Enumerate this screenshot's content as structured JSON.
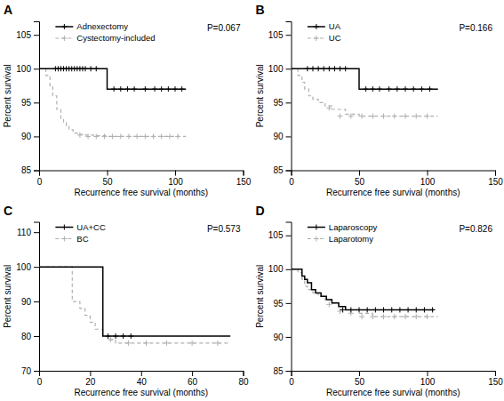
{
  "chart_data": [
    {
      "type": "step",
      "title": "A",
      "annotation": "P=0.067",
      "xlabel": "Recurrence free survival (months)",
      "ylabel": "Percent survival",
      "xlim": [
        0,
        150
      ],
      "ylim": [
        85,
        107
      ],
      "xticks": [
        0,
        50,
        100,
        150
      ],
      "yticks": [
        85,
        90,
        95,
        100,
        105
      ],
      "legend": "top-left",
      "series": [
        {
          "name": "Adnexectomy",
          "color": "#000000",
          "line_style": "solid",
          "marker": "+",
          "x": [
            0,
            10,
            15,
            20,
            25,
            30,
            35,
            40,
            45,
            50,
            55,
            60,
            65,
            70,
            75,
            80,
            85,
            90,
            95,
            100,
            105,
            108
          ],
          "values": [
            100,
            100,
            100,
            100,
            100,
            100,
            100,
            100,
            100,
            97,
            97,
            97,
            97,
            97,
            97,
            97,
            97,
            97,
            97,
            97,
            97,
            97
          ],
          "censor_x": [
            12,
            14,
            16,
            18,
            20,
            22,
            24,
            26,
            28,
            30,
            32,
            34,
            38,
            42,
            55,
            60,
            65,
            70,
            78,
            85,
            90,
            95,
            100,
            105
          ],
          "censor_values": [
            100,
            100,
            100,
            100,
            100,
            100,
            100,
            100,
            100,
            100,
            100,
            100,
            100,
            100,
            97,
            97,
            97,
            97,
            97,
            97,
            97,
            97,
            97,
            97
          ]
        },
        {
          "name": "Cystectomy-included",
          "color": "#b0b0b0",
          "line_style": "dashed",
          "marker": "+",
          "x": [
            0,
            5,
            8,
            10,
            13,
            16,
            18,
            20,
            22,
            25,
            28,
            32,
            40,
            50,
            60,
            70,
            80,
            90,
            100,
            108
          ],
          "values": [
            100,
            99,
            97.5,
            96,
            94,
            92.5,
            92,
            91.5,
            91,
            90.5,
            90.3,
            90.2,
            90.1,
            90,
            90,
            90,
            90,
            90,
            90,
            90
          ],
          "censor_x": [
            30,
            36,
            42,
            48,
            54,
            60,
            66,
            72,
            78,
            84,
            90,
            96,
            102
          ],
          "censor_values": [
            90.2,
            90,
            90,
            90,
            90,
            90,
            90,
            90,
            90,
            90,
            90,
            90,
            90
          ]
        }
      ]
    },
    {
      "type": "step",
      "title": "B",
      "annotation": "P=0.166",
      "xlabel": "Recurrence free survival (months)",
      "ylabel": "Percent survival",
      "xlim": [
        0,
        150
      ],
      "ylim": [
        85,
        107
      ],
      "xticks": [
        0,
        50,
        100,
        150
      ],
      "yticks": [
        85,
        90,
        95,
        100,
        105
      ],
      "legend": "top-left",
      "series": [
        {
          "name": "UA",
          "color": "#000000",
          "line_style": "solid",
          "marker": "+",
          "x": [
            0,
            10,
            15,
            20,
            25,
            30,
            35,
            40,
            45,
            50,
            55,
            60,
            65,
            70,
            75,
            80,
            85,
            90,
            95,
            100,
            105,
            108
          ],
          "values": [
            100,
            100,
            100,
            100,
            100,
            100,
            100,
            100,
            100,
            97,
            97,
            97,
            97,
            97,
            97,
            97,
            97,
            97,
            97,
            97,
            97,
            97
          ],
          "censor_x": [
            12,
            16,
            20,
            24,
            28,
            32,
            36,
            40,
            55,
            60,
            65,
            72,
            78,
            84,
            90,
            96,
            102
          ],
          "censor_values": [
            100,
            100,
            100,
            100,
            100,
            100,
            100,
            100,
            97,
            97,
            97,
            97,
            97,
            97,
            97,
            97,
            97
          ]
        },
        {
          "name": "UC",
          "color": "#b0b0b0",
          "line_style": "dashed",
          "marker": "+",
          "x": [
            0,
            5,
            8,
            10,
            13,
            16,
            20,
            25,
            30,
            40,
            50,
            60,
            80,
            100,
            108
          ],
          "values": [
            100,
            99,
            98,
            97,
            96,
            95.5,
            95,
            94.5,
            94,
            93.3,
            93,
            93,
            93,
            93,
            93
          ],
          "censor_x": [
            28,
            36,
            44,
            52,
            60,
            68,
            76,
            84,
            92,
            100
          ],
          "censor_values": [
            94.2,
            93,
            93,
            93,
            93,
            93,
            93,
            93,
            93,
            93
          ]
        }
      ]
    },
    {
      "type": "step",
      "title": "C",
      "annotation": "P=0.573",
      "xlabel": "Recurrence free survival (months)",
      "ylabel": "Percent survival",
      "xlim": [
        0,
        80
      ],
      "ylim": [
        70,
        113
      ],
      "xticks": [
        0,
        20,
        40,
        60,
        80
      ],
      "yticks": [
        70,
        80,
        90,
        100,
        110
      ],
      "legend": "top-left",
      "series": [
        {
          "name": "UA+CC",
          "color": "#000000",
          "line_style": "solid",
          "marker": "+",
          "x": [
            0,
            5,
            10,
            15,
            20,
            25,
            25,
            30,
            35,
            38,
            75
          ],
          "values": [
            100,
            100,
            100,
            100,
            100,
            100,
            80,
            80,
            80,
            80,
            80
          ],
          "censor_x": [
            27,
            30,
            33,
            36
          ],
          "censor_values": [
            80,
            80,
            80,
            80
          ]
        },
        {
          "name": "BC",
          "color": "#b0b0b0",
          "line_style": "dashed",
          "marker": "+",
          "x": [
            0,
            10,
            13,
            16,
            18,
            20,
            22,
            25,
            28,
            30,
            40,
            50,
            60,
            70,
            75
          ],
          "values": [
            100,
            100,
            90,
            88,
            86,
            84,
            82,
            80,
            79,
            78,
            78,
            78,
            78,
            78,
            78
          ],
          "censor_x": [
            28,
            35,
            42,
            50,
            60,
            70
          ],
          "censor_values": [
            79,
            78,
            78,
            78,
            78,
            78
          ]
        }
      ]
    },
    {
      "type": "step",
      "title": "D",
      "annotation": "P=0.826",
      "xlabel": "Recurrence free survival (months)",
      "ylabel": "Percent survival",
      "xlim": [
        0,
        150
      ],
      "ylim": [
        85,
        107
      ],
      "xticks": [
        0,
        50,
        100,
        150
      ],
      "yticks": [
        85,
        90,
        95,
        100,
        105
      ],
      "legend": "top-left",
      "series": [
        {
          "name": "Laparoscopy",
          "color": "#000000",
          "line_style": "solid",
          "marker": "+",
          "x": [
            0,
            5,
            8,
            10,
            12,
            15,
            18,
            22,
            26,
            30,
            35,
            40,
            45,
            50,
            55,
            60,
            65,
            70,
            75,
            80,
            85,
            90,
            95,
            100,
            105
          ],
          "values": [
            100,
            100,
            99,
            98.5,
            98,
            97,
            96.5,
            96,
            95.5,
            95,
            94.5,
            94,
            94,
            94,
            94,
            94,
            94,
            94,
            94,
            94,
            94,
            94,
            94,
            94,
            94
          ],
          "censor_x": [
            38,
            44,
            50,
            56,
            62,
            68,
            74,
            80,
            86,
            92,
            98,
            104
          ],
          "censor_values": [
            94,
            94,
            94,
            94,
            94,
            94,
            94,
            94,
            94,
            94,
            94,
            94
          ]
        },
        {
          "name": "Laparotomy",
          "color": "#b0b0b0",
          "line_style": "dashed",
          "marker": "+",
          "x": [
            0,
            5,
            8,
            10,
            12,
            16,
            20,
            25,
            30,
            35,
            40,
            50,
            60,
            70,
            80,
            90,
            100,
            108
          ],
          "values": [
            100,
            99.5,
            98.5,
            97.5,
            97,
            96.5,
            96,
            95.5,
            95,
            94.5,
            94,
            93.5,
            93,
            93,
            93,
            93,
            93,
            93
          ],
          "censor_x": [
            28,
            36,
            44,
            52,
            60,
            68,
            76,
            84,
            92,
            100
          ],
          "censor_values": [
            94.8,
            93.8,
            93.5,
            93,
            93,
            93,
            93,
            93,
            93,
            93
          ]
        }
      ]
    }
  ]
}
